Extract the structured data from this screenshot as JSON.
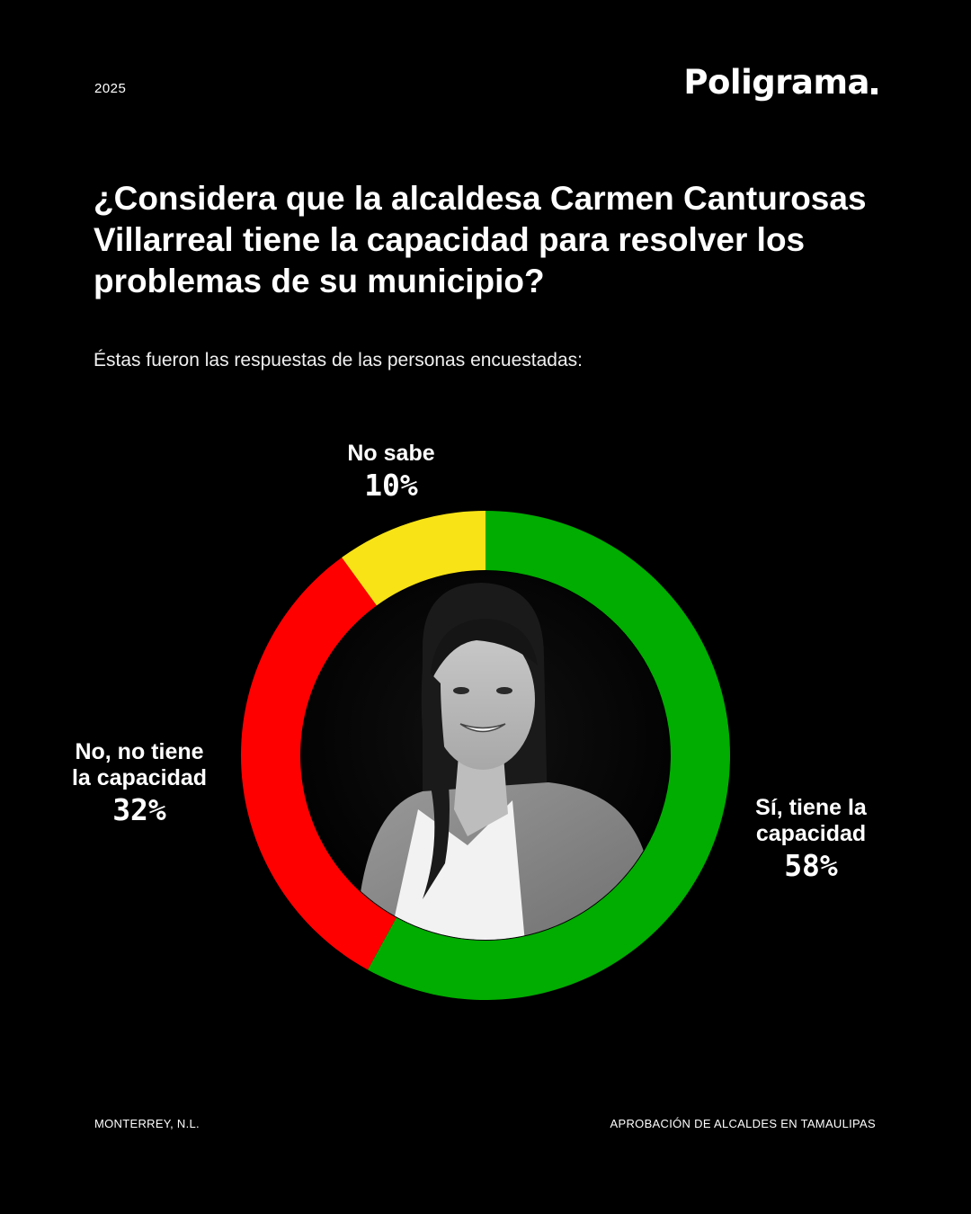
{
  "header": {
    "year": "2025",
    "brand": "Poligrama"
  },
  "question": "¿Considera que la alcaldesa Carmen Canturosas Villarreal tiene la capacidad para resolver los problemas de su municipio?",
  "subtitle": "Éstas fueron las respuestas de las personas encuestadas:",
  "chart_data": {
    "type": "pie",
    "categories": [
      "Sí, tiene la capacidad",
      "No, no tiene la capacidad",
      "No sabe"
    ],
    "values": [
      58,
      32,
      10
    ],
    "value_labels": [
      "58%",
      "32%",
      "10%"
    ],
    "colors": [
      "#00AD00",
      "#FF0000",
      "#F8E316"
    ],
    "style": "donut",
    "start": "top",
    "direction": "clockwise"
  },
  "labels": {
    "si": {
      "cat": "Sí, tiene la capacidad",
      "pct": "58%"
    },
    "no": {
      "cat": "No, no tiene la capacidad",
      "pct": "32%"
    },
    "nosabe": {
      "cat": "No sabe",
      "pct": "10%"
    }
  },
  "footer": {
    "left": "MONTERREY, N.L.",
    "right": "APROBACIÓN DE ALCALDES EN TAMAULIPAS"
  }
}
